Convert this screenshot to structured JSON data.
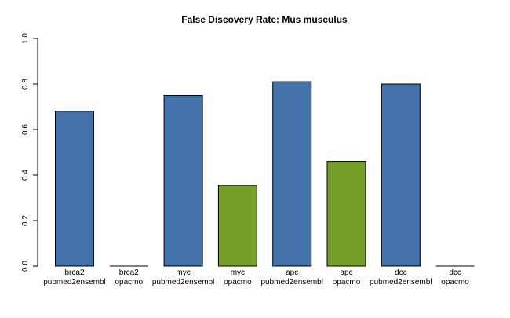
{
  "chart_data": {
    "type": "bar",
    "title": "False Discovery Rate: Mus musculus",
    "xlabel": "",
    "ylabel": "",
    "ylim": [
      0,
      1.0
    ],
    "yticks": [
      "0.0",
      "0.2",
      "0.4",
      "0.6",
      "0.8",
      "1.0"
    ],
    "grid": false,
    "legend": "none",
    "categories": [
      {
        "line1": "brca2",
        "line2": "pubmed2ensembl"
      },
      {
        "line1": "brca2",
        "line2": "opacmo"
      },
      {
        "line1": "myc",
        "line2": "pubmed2ensembl"
      },
      {
        "line1": "myc",
        "line2": "opacmo"
      },
      {
        "line1": "apc",
        "line2": "pubmed2ensembl"
      },
      {
        "line1": "apc",
        "line2": "opacmo"
      },
      {
        "line1": "dcc",
        "line2": "pubmed2ensembl"
      },
      {
        "line1": "dcc",
        "line2": "opacmo"
      }
    ],
    "values": [
      0.68,
      0.0,
      0.75,
      0.355,
      0.81,
      0.46,
      0.8,
      0.0
    ],
    "colors": {
      "pubmed2ensembl": "#4472ab",
      "opacmo": "#74a02a",
      "outline": "#000000"
    }
  }
}
